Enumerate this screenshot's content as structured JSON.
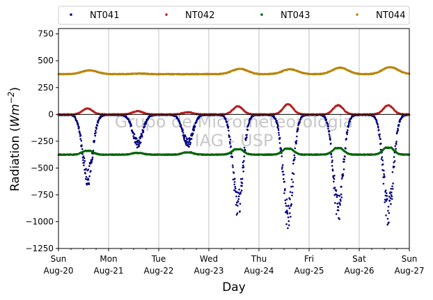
{
  "chart_data": {
    "type": "scatter",
    "xlabel": "Day",
    "ylabel_prefix": "Radiation (",
    "ylabel_unit": "Wm",
    "ylabel_exp": "−2",
    "ylabel_suffix": ")",
    "ylim": [
      -1250,
      800
    ],
    "yticks": [
      750,
      500,
      250,
      0,
      -250,
      -500,
      -750,
      -1000,
      -1250
    ],
    "ytick_labels": [
      "750",
      "500",
      "250",
      "0",
      "−250",
      "−500",
      "−750",
      "−1000",
      "−1250"
    ],
    "xlim_days": [
      0,
      7
    ],
    "xticks": [
      {
        "day": "Sun",
        "date": "Aug-20"
      },
      {
        "day": "Mon",
        "date": "Aug-21"
      },
      {
        "day": "Tue",
        "date": "Aug-22"
      },
      {
        "day": "Wed",
        "date": "Aug-23"
      },
      {
        "day": "Thu",
        "date": "Aug-24"
      },
      {
        "day": "Fri",
        "date": "Aug-25"
      },
      {
        "day": "Sat",
        "date": "Aug-26"
      },
      {
        "day": "Sun",
        "date": "Aug-27"
      }
    ],
    "grid": "vertical",
    "legend_position": "top",
    "watermark": [
      "Grupo de Micrometeorologia",
      "IAG - USP"
    ],
    "series": [
      {
        "name": "NT041",
        "color": "#00007f",
        "baseline": -5,
        "daily_peak": [
          -590,
          -270,
          -270,
          -850,
          -940,
          -880,
          -910
        ]
      },
      {
        "name": "NT042",
        "color": "#b22222",
        "baseline": 0,
        "daily_peak": [
          55,
          30,
          20,
          75,
          95,
          85,
          85
        ]
      },
      {
        "name": "NT043",
        "color": "#006400",
        "baseline": -375,
        "daily_peak": [
          -340,
          -360,
          -355,
          -325,
          -320,
          -315,
          -310
        ]
      },
      {
        "name": "NT044",
        "color": "#b8860b",
        "baseline": 375,
        "daily_peak": [
          410,
          380,
          375,
          425,
          420,
          435,
          440
        ]
      }
    ]
  }
}
